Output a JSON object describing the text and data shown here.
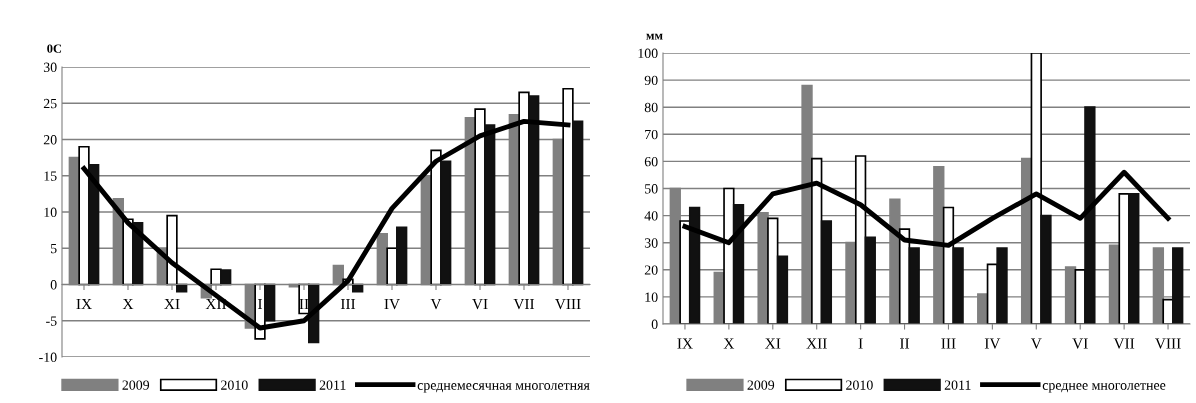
{
  "chart_data": [
    {
      "type": "bar",
      "ylabel": "0C",
      "categories": [
        "IX",
        "X",
        "XI",
        "XII",
        "I",
        "II",
        "III",
        "IV",
        "V",
        "VI",
        "VII",
        "VIII"
      ],
      "ylim": [
        -10,
        30
      ],
      "yticks": [
        -10,
        -5,
        0,
        5,
        10,
        15,
        20,
        25,
        30
      ],
      "grid": "y",
      "legend": "bottom",
      "series": [
        {
          "name": "2009",
          "color": "#808080",
          "values": [
            17.5,
            11.8,
            5,
            -1.8,
            -6,
            -0.3,
            2.6,
            7,
            15,
            23,
            23.4,
            20
          ]
        },
        {
          "name": "2010",
          "color": "#ffffff",
          "values": [
            19,
            9,
            9.5,
            2.1,
            -7.5,
            -4,
            0.7,
            5,
            18.5,
            24.2,
            26.5,
            27
          ]
        },
        {
          "name": "2011",
          "color": "#111111",
          "values": [
            16.5,
            8.5,
            -1,
            2,
            -5,
            -8,
            -1,
            7.9,
            17,
            22,
            26,
            22.5
          ]
        },
        {
          "name": "среднемесячная многолетняя",
          "type": "line",
          "color": "#000000",
          "values": [
            16,
            8.5,
            3,
            -1.5,
            -6,
            -5,
            0.5,
            10.5,
            17,
            20.5,
            22.5,
            22
          ]
        }
      ]
    },
    {
      "type": "bar",
      "ylabel": "мм",
      "categories": [
        "IX",
        "X",
        "XI",
        "XII",
        "I",
        "II",
        "III",
        "IV",
        "V",
        "VI",
        "VII",
        "VIII"
      ],
      "ylim": [
        0,
        100
      ],
      "yticks": [
        0,
        10,
        20,
        30,
        40,
        50,
        60,
        70,
        80,
        90,
        100
      ],
      "grid": "y",
      "legend": "bottom",
      "series": [
        {
          "name": "2009",
          "color": "#808080",
          "values": [
            50,
            19,
            41,
            88,
            30,
            46,
            58,
            11,
            61,
            21,
            29,
            28
          ]
        },
        {
          "name": "2010",
          "color": "#ffffff",
          "values": [
            38,
            50,
            39,
            61,
            62,
            35,
            43,
            22,
            100,
            20,
            48,
            9
          ]
        },
        {
          "name": "2011",
          "color": "#111111",
          "values": [
            43,
            44,
            25,
            38,
            32,
            28,
            28,
            28,
            40,
            80,
            48,
            28
          ]
        },
        {
          "name": "среднее многолетнее",
          "type": "line",
          "color": "#000000",
          "values": [
            36,
            30,
            48,
            52,
            44,
            31,
            29,
            39,
            48,
            39,
            56,
            39
          ]
        }
      ]
    }
  ]
}
